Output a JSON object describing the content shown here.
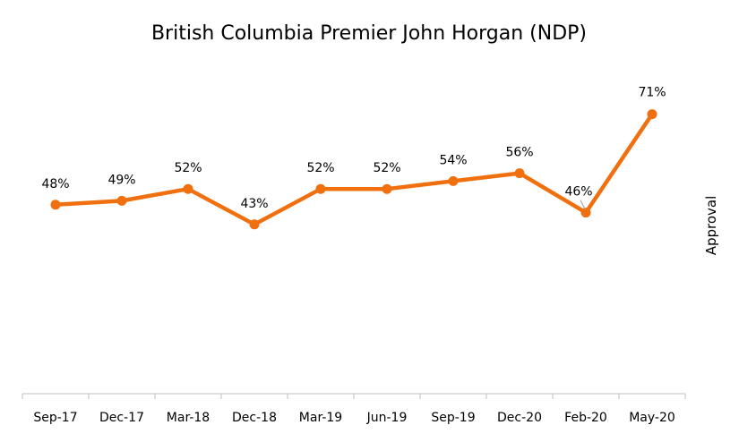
{
  "chart_data": {
    "type": "line",
    "title": "British Columbia Premier John Horgan (NDP)",
    "xlabel": "",
    "ylabel": "Approval",
    "categories": [
      "Sep-17",
      "Dec-17",
      "Mar-18",
      "Dec-18",
      "Mar-19",
      "Jun-19",
      "Sep-19",
      "Dec-20",
      "Feb-20",
      "May-20"
    ],
    "series": [
      {
        "values": [
          48,
          49,
          52,
          43,
          52,
          52,
          54,
          56,
          46,
          71
        ],
        "labels": [
          "48%",
          "49%",
          "52%",
          "43%",
          "52%",
          "52%",
          "54%",
          "56%",
          "46%",
          "71%"
        ],
        "color": "#F07010"
      }
    ],
    "ylim": [
      0,
      95
    ],
    "grid": false,
    "legend": "none",
    "axis_color": "#BFBFBF"
  }
}
